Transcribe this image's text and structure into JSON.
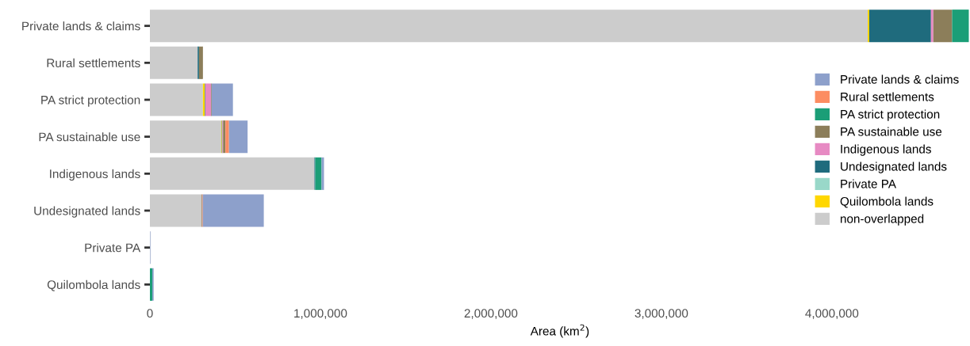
{
  "chart_data": {
    "type": "bar",
    "orientation": "horizontal",
    "stacked": true,
    "xlabel": "Area (km$^{2}$)",
    "categories": [
      "Private lands & claims",
      "Rural settlements",
      "PA strict protection",
      "PA sustainable use",
      "Indigenous lands",
      "Undesignated lands",
      "Private PA",
      "Quilombola lands"
    ],
    "series": [
      {
        "name": "non-overlapped",
        "color": "#cccccc",
        "values": [
          4210000,
          280000,
          311000,
          418000,
          965000,
          302000,
          2000,
          null
        ]
      },
      {
        "name": "Quilombola lands",
        "color": "#ffd700",
        "values": [
          9000,
          0,
          11000,
          4000,
          0,
          0,
          0,
          0
        ]
      },
      {
        "name": "Private PA",
        "color": "#99d8c9",
        "values": [
          0,
          0,
          0,
          0,
          0,
          0,
          0,
          0
        ]
      },
      {
        "name": "Undesignated lands",
        "color": "#1f6b7d",
        "values": [
          362000,
          8000,
          3000,
          3000,
          5000,
          0,
          0,
          0
        ]
      },
      {
        "name": "Indigenous lands",
        "color": "#e78ac3",
        "values": [
          14000,
          0,
          33000,
          4000,
          0,
          0,
          0,
          0
        ]
      },
      {
        "name": "PA sustainable use",
        "color": "#8c7e5a",
        "values": [
          110000,
          23000,
          4000,
          14000,
          0,
          4000,
          0,
          0
        ]
      },
      {
        "name": "PA strict protection",
        "color": "#1b9e77",
        "values": [
          98000,
          0,
          0,
          0,
          37000,
          0,
          0,
          14000
        ]
      },
      {
        "name": "Rural settlements",
        "color": "#fc8d62",
        "values": [
          0,
          0,
          0,
          21000,
          0,
          4000,
          0,
          0
        ]
      },
      {
        "name": "Private lands & claims",
        "color": "#8da0cb",
        "values": [
          0,
          0,
          125000,
          109000,
          14000,
          358000,
          3000,
          8000
        ]
      }
    ],
    "xlim": [
      0,
      4810000
    ],
    "xticks": [
      {
        "value": 0,
        "label": "0"
      },
      {
        "value": 1000000,
        "label": "1,000,000"
      },
      {
        "value": 2000000,
        "label": "2,000,000"
      },
      {
        "value": 3000000,
        "label": "3,000,000"
      },
      {
        "value": 4000000,
        "label": "4,000,000"
      }
    ],
    "legend": "right",
    "grid": false
  }
}
